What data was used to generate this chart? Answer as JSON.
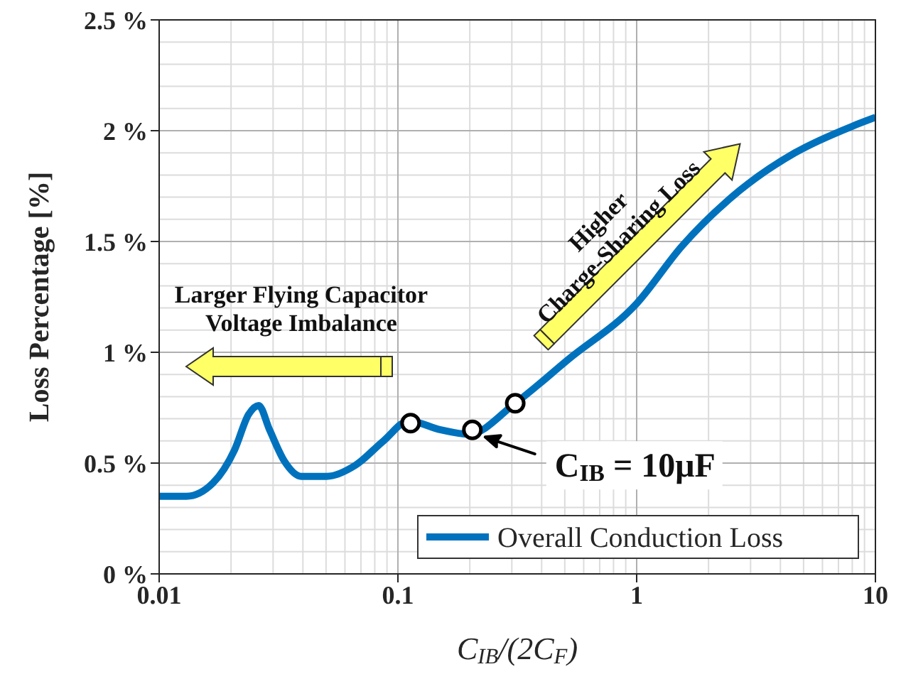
{
  "chart_data": {
    "type": "line",
    "xlabel": "C$_{IB}$/(2C$_{F}$)",
    "ylabel": "Loss Percentage [%]",
    "log": "x",
    "xlim": [
      0.01,
      10
    ],
    "xticks": [
      0.01,
      0.1,
      1,
      10
    ],
    "ylim": [
      0,
      2.5
    ],
    "yticks": [
      {
        "value": 0,
        "label": "0 %"
      },
      {
        "value": 0.5,
        "label": "0.5 %"
      },
      {
        "value": 1,
        "label": "1 %"
      },
      {
        "value": 1.5,
        "label": "1.5 %"
      },
      {
        "value": 2,
        "label": "2 %"
      },
      {
        "value": 2.5,
        "label": "2.5 %"
      }
    ],
    "grid": true,
    "legend": "bottom right",
    "series": [
      {
        "name": "Overall Conduction Loss",
        "color": "#0072bd",
        "x": [
          0.01,
          0.013,
          0.0168,
          0.0207,
          0.0237,
          0.0261,
          0.029,
          0.0334,
          0.0394,
          0.0503,
          0.0663,
          0.087,
          0.111,
          0.151,
          0.198,
          0.31,
          0.52,
          1.0,
          1.55,
          2.7,
          4.6,
          8.0,
          10
        ],
        "values": [
          0.35,
          0.35,
          0.41,
          0.56,
          0.72,
          0.76,
          0.65,
          0.51,
          0.44,
          0.44,
          0.49,
          0.6,
          0.69,
          0.65,
          0.63,
          0.77,
          0.97,
          1.22,
          1.48,
          1.73,
          1.9,
          2.02,
          2.06
        ]
      },
      {
        "type": "scatter",
        "color": "#000000",
        "marker": "circle",
        "x": [
          0.113,
          0.205,
          0.31
        ],
        "values": [
          0.68,
          0.65,
          0.77
        ]
      }
    ],
    "annotations": [
      "Larger Flying Capacitor\nVoltage Imbalance",
      "Higher\nCharge-Sharing Loss",
      {
        "text": "C$_{IB}$ = 10μF",
        "x": 0.205,
        "y": 0.65
      }
    ]
  }
}
